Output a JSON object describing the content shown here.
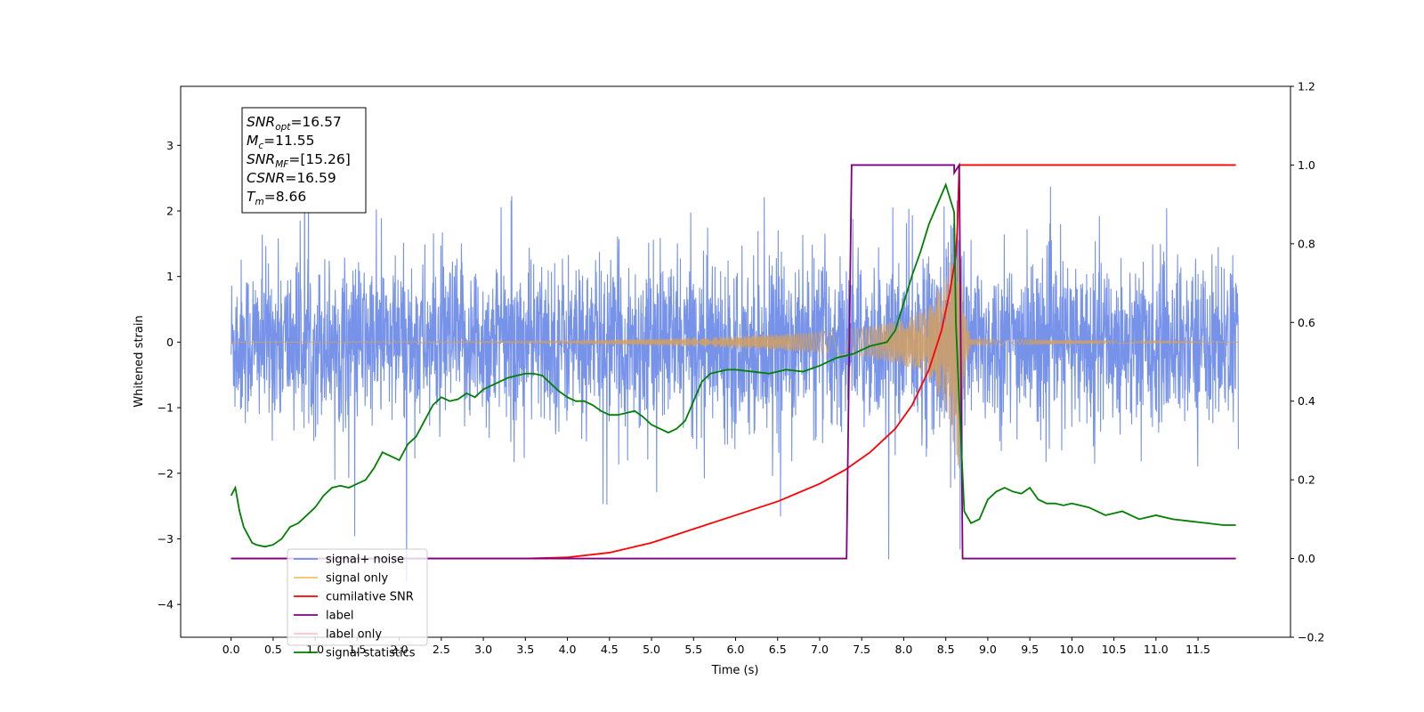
{
  "chart_data": {
    "type": "line",
    "xlabel": "Time (s)",
    "ylabel": "Whitened strain",
    "xlim": [
      -0.6,
      12.6
    ],
    "ylim": [
      -4.5,
      3.9
    ],
    "y2lim": [
      -0.2,
      1.2
    ],
    "x_ticks": [
      "0.0",
      "0.5",
      "1.0",
      "1.5",
      "2.0",
      "2.5",
      "3.0",
      "3.5",
      "4.0",
      "4.5",
      "5.0",
      "5.5",
      "6.0",
      "6.5",
      "7.0",
      "7.5",
      "8.0",
      "8.5",
      "9.0",
      "9.5",
      "10.0",
      "10.5",
      "11.0",
      "11.5"
    ],
    "y_ticks": [
      "3",
      "2",
      "1",
      "0",
      "−1",
      "−2",
      "−3",
      "−4"
    ],
    "y_tick_values": [
      3,
      2,
      1,
      0,
      -1,
      -2,
      -3,
      -4
    ],
    "y2_ticks": [
      "1.2",
      "1.0",
      "0.8",
      "0.6",
      "0.4",
      "0.2",
      "0.0",
      "−0.2"
    ],
    "y2_tick_values": [
      1.2,
      1.0,
      0.8,
      0.6,
      0.4,
      0.2,
      0.0,
      -0.2
    ],
    "annotation": [
      {
        "base": "SNR",
        "sub": "opt",
        "value": "=16.57"
      },
      {
        "base": "M",
        "sub": "c",
        "value": "=11.55"
      },
      {
        "base": "SNR",
        "sub": "MF",
        "value": "=[15.26]"
      },
      {
        "base": "CSNR",
        "sub": "",
        "value": "=16.59"
      },
      {
        "base": "T",
        "sub": "m",
        "value": "=8.66"
      }
    ],
    "legend_position": "lower-left",
    "legend": [
      {
        "label": "signal+ noise",
        "color": "#6f8ce8"
      },
      {
        "label": "signal only",
        "color": "#ffbf60"
      },
      {
        "label": "cumilative SNR",
        "color": "#ff0000"
      },
      {
        "label": "label",
        "color": "#800080"
      },
      {
        "label": "label only",
        "color": "#ffc0cb"
      },
      {
        "label": "signal statistics",
        "color": "#008000"
      }
    ],
    "series": [
      {
        "name": "signal+ noise",
        "axis": "left",
        "color": "#6f8ce8",
        "description": "white noise, amplitude about ±1.5 with spikes near ±3.5, plus chirp signal"
      },
      {
        "name": "signal only",
        "axis": "left",
        "color": "#d4a060",
        "description": "chirp amplitude rising to ±2 at merger t=8.66, then ringdown",
        "x": [
          0.0,
          4.0,
          5.0,
          6.0,
          7.0,
          7.5,
          8.0,
          8.3,
          8.5,
          8.6,
          8.66,
          8.72,
          8.8,
          12.0
        ],
        "amplitude": [
          0.0,
          0.02,
          0.05,
          0.09,
          0.16,
          0.22,
          0.35,
          0.55,
          1.0,
          1.6,
          2.0,
          0.5,
          0.05,
          0.0
        ]
      },
      {
        "name": "cumilative SNR",
        "axis": "right",
        "color": "#ff0000",
        "x": [
          0.0,
          3.5,
          4.0,
          4.5,
          5.0,
          5.5,
          6.0,
          6.5,
          7.0,
          7.3,
          7.6,
          7.9,
          8.1,
          8.3,
          8.45,
          8.55,
          8.62,
          8.64,
          8.66,
          11.95
        ],
        "y": [
          0.0,
          0.0,
          0.003,
          0.015,
          0.04,
          0.075,
          0.11,
          0.145,
          0.19,
          0.225,
          0.27,
          0.33,
          0.39,
          0.48,
          0.58,
          0.68,
          0.77,
          0.85,
          1.0,
          1.0
        ]
      },
      {
        "name": "label",
        "axis": "right",
        "color": "#800080",
        "x": [
          0.0,
          7.32,
          7.38,
          8.6,
          8.6,
          8.66,
          8.7,
          11.95
        ],
        "y": [
          0.0,
          0.0,
          1.0,
          1.0,
          0.98,
          1.0,
          0.0,
          0.0
        ]
      },
      {
        "name": "signal statistics",
        "axis": "right",
        "color": "#008000",
        "x": [
          0.0,
          0.05,
          0.1,
          0.15,
          0.2,
          0.25,
          0.3,
          0.4,
          0.5,
          0.6,
          0.7,
          0.8,
          0.9,
          1.0,
          1.1,
          1.2,
          1.3,
          1.4,
          1.5,
          1.6,
          1.7,
          1.8,
          1.9,
          2.0,
          2.1,
          2.2,
          2.3,
          2.4,
          2.5,
          2.6,
          2.7,
          2.8,
          2.9,
          3.0,
          3.1,
          3.2,
          3.3,
          3.4,
          3.5,
          3.6,
          3.7,
          3.8,
          3.9,
          4.0,
          4.1,
          4.2,
          4.3,
          4.4,
          4.5,
          4.6,
          4.7,
          4.8,
          4.9,
          5.0,
          5.1,
          5.2,
          5.3,
          5.4,
          5.5,
          5.6,
          5.7,
          5.8,
          5.9,
          6.0,
          6.2,
          6.4,
          6.6,
          6.8,
          7.0,
          7.2,
          7.4,
          7.5,
          7.6,
          7.7,
          7.8,
          7.9,
          8.0,
          8.1,
          8.2,
          8.3,
          8.4,
          8.5,
          8.6,
          8.62,
          8.66,
          8.72,
          8.8,
          8.9,
          9.0,
          9.1,
          9.2,
          9.3,
          9.4,
          9.5,
          9.6,
          9.7,
          9.8,
          9.9,
          10.0,
          10.2,
          10.4,
          10.6,
          10.8,
          11.0,
          11.2,
          11.4,
          11.6,
          11.8,
          11.95
        ],
        "y": [
          0.16,
          0.18,
          0.12,
          0.08,
          0.06,
          0.04,
          0.035,
          0.03,
          0.035,
          0.05,
          0.08,
          0.09,
          0.11,
          0.13,
          0.16,
          0.18,
          0.185,
          0.18,
          0.19,
          0.2,
          0.23,
          0.27,
          0.26,
          0.25,
          0.29,
          0.31,
          0.35,
          0.39,
          0.41,
          0.4,
          0.405,
          0.42,
          0.41,
          0.43,
          0.44,
          0.45,
          0.46,
          0.465,
          0.47,
          0.47,
          0.465,
          0.445,
          0.425,
          0.41,
          0.4,
          0.4,
          0.39,
          0.375,
          0.365,
          0.365,
          0.37,
          0.375,
          0.36,
          0.34,
          0.33,
          0.32,
          0.33,
          0.35,
          0.4,
          0.45,
          0.47,
          0.475,
          0.48,
          0.48,
          0.475,
          0.47,
          0.48,
          0.475,
          0.49,
          0.51,
          0.52,
          0.53,
          0.54,
          0.545,
          0.55,
          0.58,
          0.65,
          0.72,
          0.78,
          0.85,
          0.9,
          0.95,
          0.88,
          0.6,
          0.4,
          0.12,
          0.09,
          0.1,
          0.15,
          0.17,
          0.18,
          0.17,
          0.165,
          0.18,
          0.15,
          0.14,
          0.14,
          0.135,
          0.14,
          0.13,
          0.11,
          0.12,
          0.1,
          0.11,
          0.1,
          0.095,
          0.09,
          0.085,
          0.085
        ]
      }
    ]
  }
}
